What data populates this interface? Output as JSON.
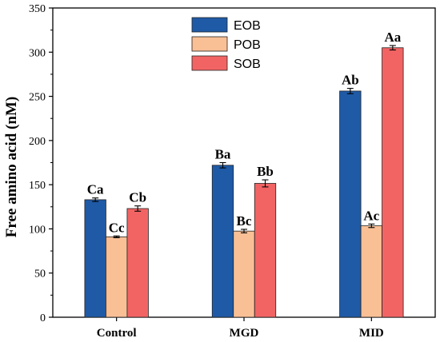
{
  "chart_data": {
    "type": "bar",
    "categories": [
      "Control",
      "MGD",
      "MID"
    ],
    "xlabel": "",
    "ylabel": "Free amino acid (nM)",
    "ylim": [
      0,
      350
    ],
    "yticks": [
      0,
      50,
      100,
      150,
      200,
      250,
      300,
      350
    ],
    "grid": false,
    "legend_position": "top-center",
    "series": [
      {
        "name": "EOB",
        "color": "#1f5aa6",
        "values": [
          133,
          172,
          256
        ],
        "errors": [
          2,
          3,
          3
        ],
        "labels": [
          "Ca",
          "Ba",
          "Ab"
        ]
      },
      {
        "name": "POB",
        "color": "#f9bf95",
        "values": [
          91,
          97.5,
          103.5
        ],
        "errors": [
          1,
          2,
          2
        ],
        "labels": [
          "Cc",
          "Bc",
          "Ac"
        ]
      },
      {
        "name": "SOB",
        "color": "#f26464",
        "values": [
          123,
          151.5,
          305
        ],
        "errors": [
          3,
          4,
          2.5
        ],
        "labels": [
          "Cb",
          "Bb",
          "Aa"
        ]
      }
    ]
  }
}
